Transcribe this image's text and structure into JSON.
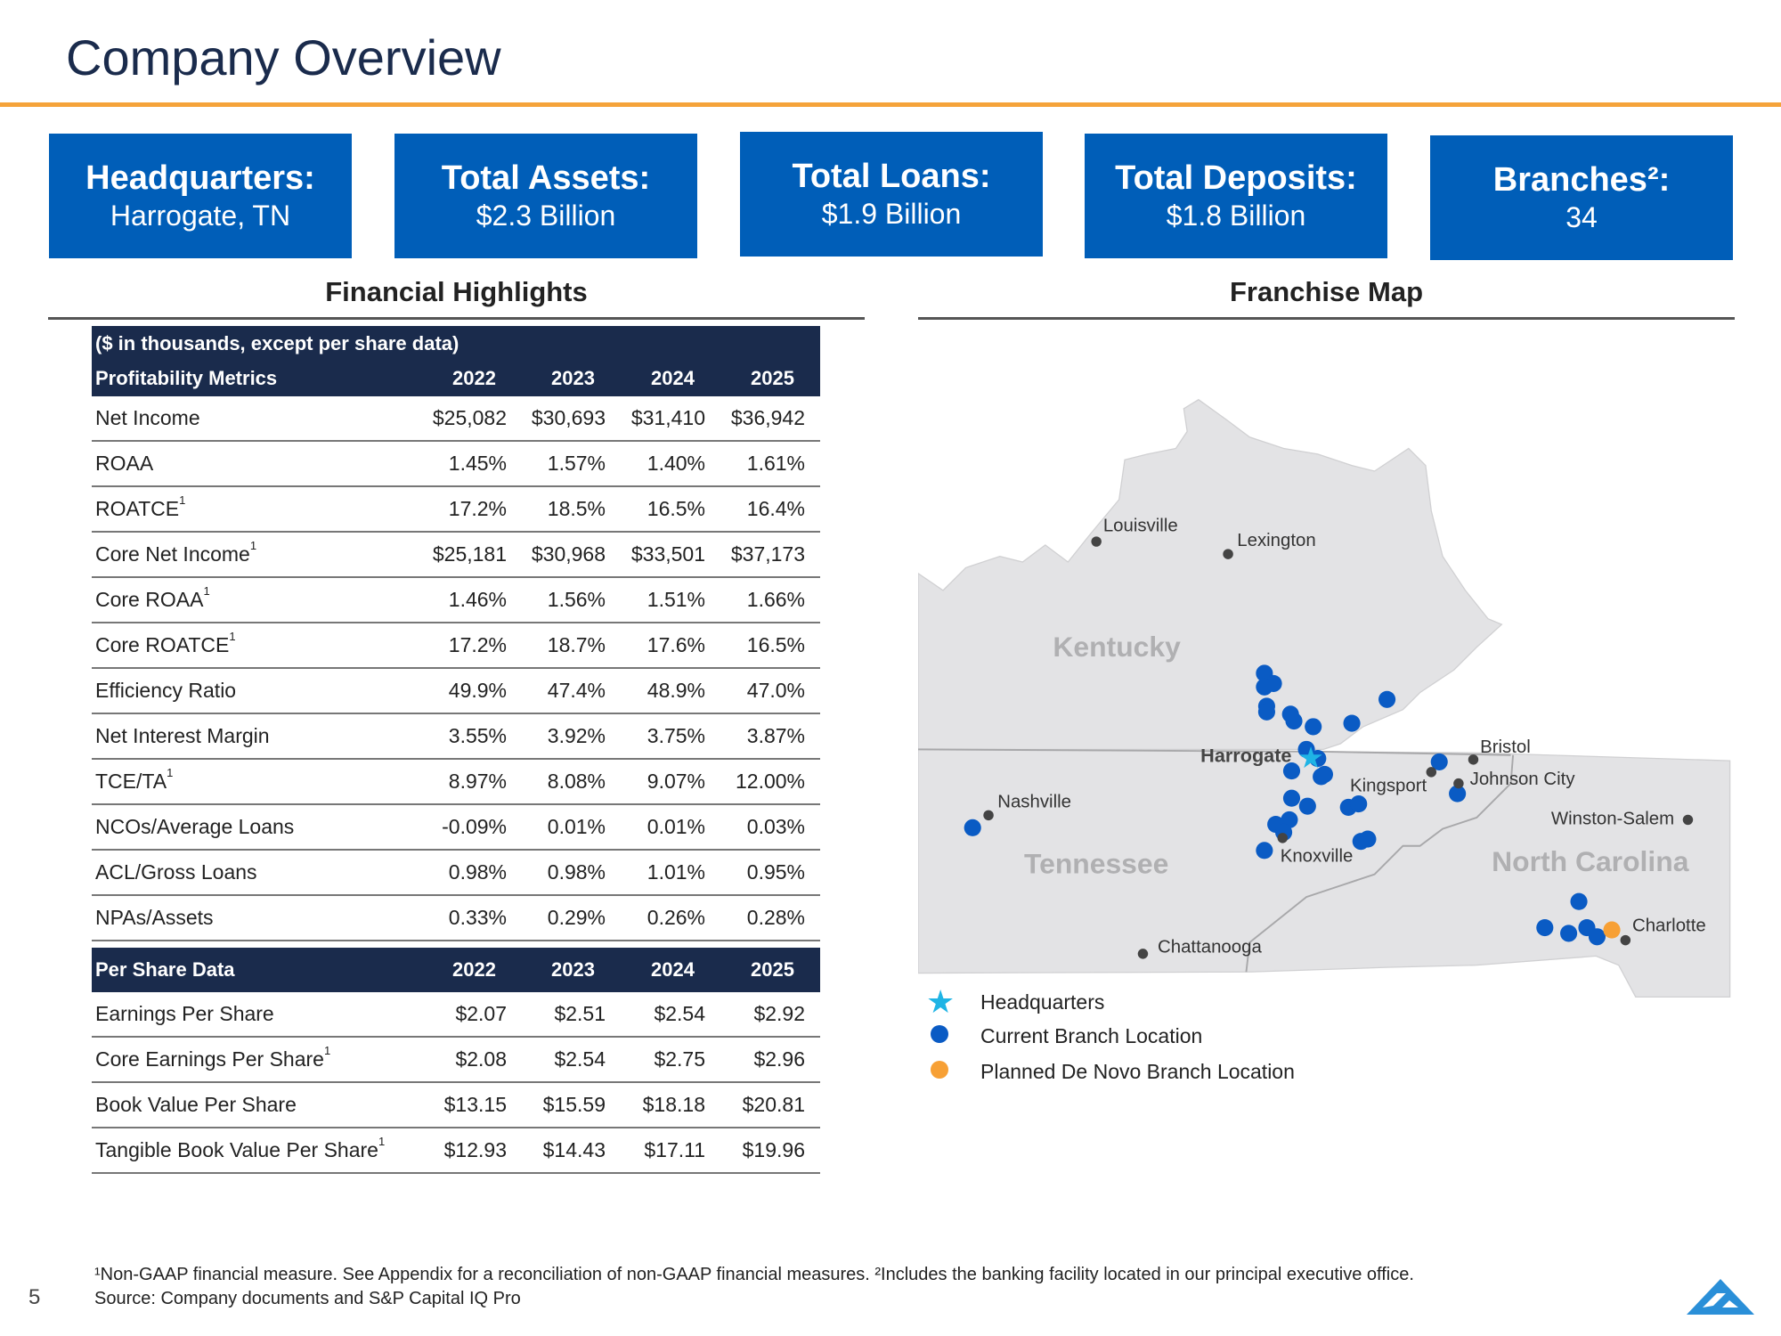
{
  "title": "Company Overview",
  "kpis": [
    {
      "label": "Headquarters:",
      "value": "Harrogate, TN"
    },
    {
      "label": "Total Assets:",
      "value": "$2.3 Billion"
    },
    {
      "label": "Total Loans:",
      "value": "$1.9 Billion"
    },
    {
      "label": "Total Deposits:",
      "value": "$1.8 Billion"
    },
    {
      "label": "Branches²:",
      "value": "34"
    }
  ],
  "financial": {
    "title": "Financial Highlights",
    "note": "($ in thousands, except per share data)",
    "profitability": {
      "header": "Profitability Metrics",
      "years": [
        "2022",
        "2023",
        "2024",
        "2025"
      ],
      "rows": [
        {
          "label": "Net Income",
          "sup": "",
          "values": [
            "$25,082",
            "$30,693",
            "$31,410",
            "$36,942"
          ]
        },
        {
          "label": "ROAA",
          "sup": "",
          "values": [
            "1.45%",
            "1.57%",
            "1.40%",
            "1.61%"
          ]
        },
        {
          "label": "ROATCE",
          "sup": "1",
          "values": [
            "17.2%",
            "18.5%",
            "16.5%",
            "16.4%"
          ]
        },
        {
          "label": "Core Net Income",
          "sup": "1",
          "values": [
            "$25,181",
            "$30,968",
            "$33,501",
            "$37,173"
          ]
        },
        {
          "label": "Core ROAA",
          "sup": "1",
          "values": [
            "1.46%",
            "1.56%",
            "1.51%",
            "1.66%"
          ]
        },
        {
          "label": "Core ROATCE",
          "sup": "1",
          "values": [
            "17.2%",
            "18.7%",
            "17.6%",
            "16.5%"
          ]
        },
        {
          "label": "Efficiency Ratio",
          "sup": "",
          "values": [
            "49.9%",
            "47.4%",
            "48.9%",
            "47.0%"
          ]
        },
        {
          "label": "Net Interest Margin",
          "sup": "",
          "values": [
            "3.55%",
            "3.92%",
            "3.75%",
            "3.87%"
          ]
        },
        {
          "label": "TCE/TA",
          "sup": "1",
          "values": [
            "8.97%",
            "8.08%",
            "9.07%",
            "12.00%"
          ]
        },
        {
          "label": "NCOs/Average Loans",
          "sup": "",
          "values": [
            "-0.09%",
            "0.01%",
            "0.01%",
            "0.03%"
          ]
        },
        {
          "label": "ACL/Gross Loans",
          "sup": "",
          "values": [
            "0.98%",
            "0.98%",
            "1.01%",
            "0.95%"
          ]
        },
        {
          "label": "NPAs/Assets",
          "sup": "",
          "values": [
            "0.33%",
            "0.29%",
            "0.26%",
            "0.28%"
          ]
        }
      ]
    },
    "per_share": {
      "header": "Per Share Data",
      "years": [
        "2022",
        "2023",
        "2024",
        "2025"
      ],
      "rows": [
        {
          "label": "Earnings Per Share",
          "sup": "",
          "values": [
            "$2.07",
            "$2.51",
            "$2.54",
            "$2.92"
          ]
        },
        {
          "label": "Core Earnings Per Share",
          "sup": "1",
          "values": [
            "$2.08",
            "$2.54",
            "$2.75",
            "$2.96"
          ]
        },
        {
          "label": "Book Value Per Share",
          "sup": "",
          "values": [
            "$13.15",
            "$15.59",
            "$18.18",
            "$20.81"
          ]
        },
        {
          "label": "Tangible Book Value Per Share",
          "sup": "1",
          "values": [
            "$12.93",
            "$14.43",
            "$17.11",
            "$19.96"
          ]
        }
      ]
    }
  },
  "map": {
    "title": "Franchise Map",
    "states": [
      "Kentucky",
      "Tennessee",
      "North Carolina"
    ],
    "hq_city": "Harrogate",
    "cities": [
      "Louisville",
      "Lexington",
      "Nashville",
      "Knoxville",
      "Chattanooga",
      "Kingsport",
      "Bristol",
      "Johnson City",
      "Winston-Salem",
      "Charlotte"
    ],
    "colors": {
      "branch": "#0a5bc4",
      "hq": "#1fb4e5",
      "planned": "#f7a035",
      "land": "#e3e3e5",
      "city": "#444444"
    },
    "legend": [
      {
        "icon": "star-icon",
        "label": "Headquarters"
      },
      {
        "icon": "blue-dot-icon",
        "label": "Current Branch Location"
      },
      {
        "icon": "orange-dot-icon",
        "label": "Planned De Novo Branch Location"
      }
    ]
  },
  "footer": {
    "line1": "¹Non-GAAP financial measure. See Appendix for a reconciliation of non-GAAP financial measures. ²Includes the banking facility located in our principal executive office.",
    "line2": "Source: Company documents and S&P Capital IQ Pro"
  },
  "page_number": "5"
}
